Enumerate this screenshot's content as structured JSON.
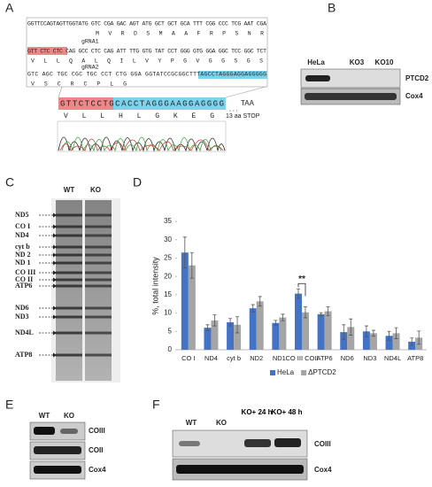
{
  "panel_letters": [
    "A",
    "B",
    "C",
    "D",
    "E",
    "F"
  ],
  "panel_a": {
    "seq1": "GGTTCCAGTAGTTGGTATG GTC CGA GAC AGT ATG GCT GCT GCA TTT CGG CCC TCG AAT CGA",
    "aa1": "M   V   R   D   S   M   A   A   F   R   P   S   N   R",
    "grna1": "gRNA1",
    "seq2": "GTT CTC CTC CAG GCC CTC CAG ATT TTG GTG TAT CCT GGG GTG GGA GGC TCC GGC TCT",
    "aa2": "V   L   L   Q   A   L   Q   I   L   V   Y   P   G   V   G   G   S   G   S",
    "grna2": "gRNA2",
    "seq3": "GTC AGC TGC CGC TGC CCT CTG GGA GGTATCCGCGGCTTTAGCCTAGGGAGGAGGGGG",
    "aa3": "V   S   C   R   C   P   L   G",
    "mut_seq": "G T T C T C C T G C A C C T A G G G A A G G A G G G G",
    "mut_aa": "V   L   L   H   L   G   K   E   G",
    "ellipsis": "...",
    "taa": "TAA",
    "stop": "13 aa   STOP"
  },
  "panel_b": {
    "lanes": [
      "HeLa",
      "KO3",
      "KO10"
    ],
    "blots": [
      "PTCD2",
      "Cox4"
    ]
  },
  "panel_c": {
    "lanes": [
      "WT",
      "KO"
    ],
    "bands": [
      "ND5",
      "CO I",
      "ND4",
      "cyt b",
      "ND 2",
      "ND 1",
      "CO III",
      "CO II",
      "ATP6",
      "ND6",
      "ND3",
      "ND4L",
      "ATP8"
    ]
  },
  "chart_data": {
    "type": "bar",
    "y_label": "%, total intensity",
    "categories": [
      "CO I",
      "ND4",
      "cyt b",
      "ND2",
      "ND1",
      "CO III COII",
      "ATP6",
      "ND6",
      "ND3",
      "ND4L",
      "ATP8"
    ],
    "series": [
      {
        "name": "HeLa",
        "color": "#4472c4",
        "values": [
          26.5,
          6,
          7.5,
          11.3,
          7.3,
          15.3,
          9.7,
          4.8,
          5,
          3.8,
          2.2
        ],
        "errors": [
          4.2,
          0.8,
          1,
          1,
          0.7,
          1.3,
          0.4,
          2,
          1.5,
          1.2,
          1
        ]
      },
      {
        "name": "ΔPTCD2",
        "color": "#a5a5a5",
        "values": [
          23,
          8,
          6.8,
          13.2,
          8.8,
          10.2,
          10.5,
          6.2,
          4.5,
          4.5,
          3.3
        ],
        "errors": [
          3.5,
          1.5,
          2.2,
          1.3,
          0.9,
          1.5,
          1.2,
          2.2,
          0.8,
          1.5,
          1.8
        ]
      }
    ],
    "ylim": [
      0,
      35
    ],
    "yticks": [
      0,
      5,
      10,
      15,
      20,
      25,
      30,
      35
    ],
    "grid": false,
    "legend": "bottom",
    "significance": {
      "label": "**",
      "category": "CO III COII"
    }
  },
  "panel_e": {
    "lanes": [
      "WT",
      "KO"
    ],
    "blots": [
      "COIII",
      "COII",
      "Cox4"
    ]
  },
  "panel_f": {
    "lanes": [
      "WT",
      "KO",
      "KO+ 24 h",
      "KO+ 48 h"
    ],
    "blots": [
      "COIII",
      "Cox4"
    ]
  }
}
